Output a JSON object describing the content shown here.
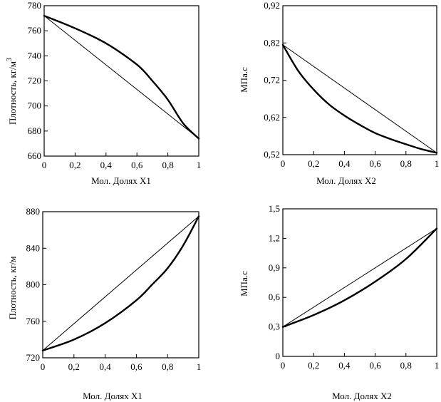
{
  "chart_data": [
    {
      "type": "line",
      "xlabel": "Мол. Долях X1",
      "ylabel": "Плотность, кг/м",
      "ylabel_superscript": "3",
      "xlim": [
        0,
        1
      ],
      "ylim": [
        660,
        780
      ],
      "xticks": [
        "0",
        "0,2",
        "0,4",
        "0,6",
        "0,8",
        "1"
      ],
      "yticks": [
        "660",
        "680",
        "700",
        "720",
        "740",
        "760",
        "780"
      ],
      "series": [
        {
          "style": "thin",
          "x": [
            0,
            1
          ],
          "y": [
            772,
            674
          ]
        },
        {
          "style": "thick",
          "x": [
            0,
            0.2,
            0.4,
            0.6,
            0.7,
            0.8,
            0.9,
            1
          ],
          "y": [
            772,
            762,
            750,
            733,
            720,
            705,
            686,
            674
          ]
        }
      ]
    },
    {
      "type": "line",
      "xlabel": "Мол. Долях X2",
      "ylabel": "МПа.с",
      "xlim": [
        0,
        1
      ],
      "ylim": [
        0.52,
        0.92
      ],
      "xticks": [
        "0",
        "0,2",
        "0,4",
        "0,6",
        "0,8",
        "1"
      ],
      "yticks": [
        "0,52",
        "0,62",
        "0,72",
        "0,82",
        "0,92"
      ],
      "series": [
        {
          "style": "thin",
          "x": [
            0,
            1
          ],
          "y": [
            0.815,
            0.525
          ]
        },
        {
          "style": "thick",
          "x": [
            0,
            0.1,
            0.2,
            0.3,
            0.4,
            0.5,
            0.6,
            0.7,
            0.8,
            0.9,
            1
          ],
          "y": [
            0.815,
            0.745,
            0.695,
            0.655,
            0.625,
            0.6,
            0.578,
            0.562,
            0.548,
            0.535,
            0.525
          ]
        }
      ]
    },
    {
      "type": "line",
      "xlabel": "Мол. Долях X1",
      "ylabel": "Плотность, кг/м",
      "xlim": [
        0,
        1
      ],
      "ylim": [
        720,
        880
      ],
      "xticks": [
        "0",
        "0,2",
        "0,4",
        "0,6",
        "0,8",
        "1"
      ],
      "yticks": [
        "720",
        "760",
        "800",
        "840",
        "880"
      ],
      "series": [
        {
          "style": "thin",
          "x": [
            0,
            1
          ],
          "y": [
            728,
            875
          ]
        },
        {
          "style": "thick",
          "x": [
            0,
            0.2,
            0.4,
            0.6,
            0.7,
            0.8,
            0.9,
            1
          ],
          "y": [
            728,
            740,
            758,
            783,
            800,
            818,
            843,
            875
          ]
        }
      ]
    },
    {
      "type": "line",
      "xlabel": "Мол. Долях X2",
      "ylabel": "МПа.с",
      "xlim": [
        0,
        1
      ],
      "ylim": [
        0,
        1.5
      ],
      "xticks": [
        "0",
        "0,2",
        "0,4",
        "0,6",
        "0,8",
        "1"
      ],
      "yticks": [
        "0",
        "0,3",
        "0,6",
        "0,9",
        "1,2",
        "1,5"
      ],
      "series": [
        {
          "style": "thin",
          "x": [
            0,
            1
          ],
          "y": [
            0.3,
            1.3
          ]
        },
        {
          "style": "thick",
          "x": [
            0,
            0.2,
            0.4,
            0.6,
            0.8,
            1
          ],
          "y": [
            0.3,
            0.42,
            0.57,
            0.76,
            0.99,
            1.3
          ]
        }
      ]
    }
  ]
}
